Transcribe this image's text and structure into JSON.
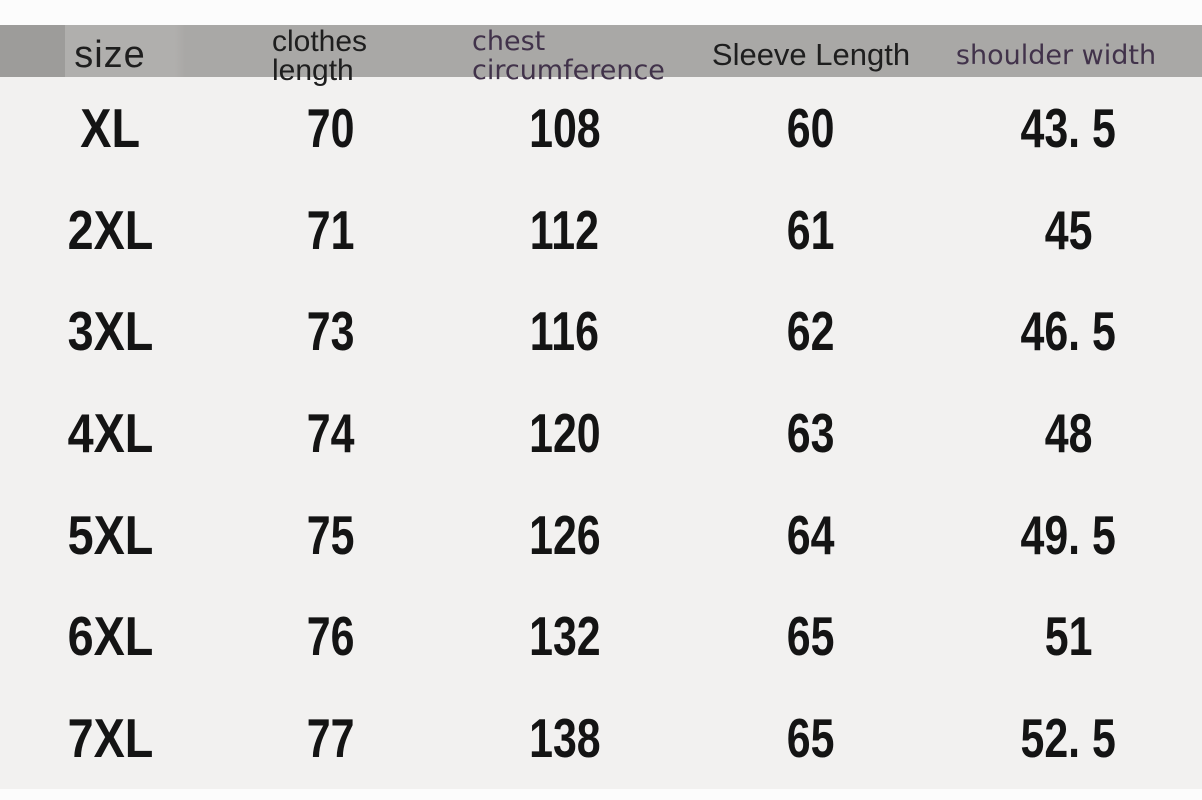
{
  "colors": {
    "header_band": "#a9a8a6",
    "body_bg": "#f2f1f0",
    "page_bg": "#fcfcfc",
    "header_text": "#1e1e1e",
    "accent_header_text": "#41324a",
    "value_text": "#141414"
  },
  "table": {
    "headers": {
      "size": "size",
      "clothes_length_line1": "clothes",
      "clothes_length_line2": "length",
      "chest_line1": "chest",
      "chest_line2": "circumference",
      "sleeve": "Sleeve Length",
      "shoulder": "shoulder width"
    },
    "rows": [
      {
        "size": "XL",
        "clothes_length": "70",
        "chest": "108",
        "sleeve": "60",
        "shoulder": "43. 5"
      },
      {
        "size": "2XL",
        "clothes_length": "71",
        "chest": "112",
        "sleeve": "61",
        "shoulder": "45"
      },
      {
        "size": "3XL",
        "clothes_length": "73",
        "chest": "116",
        "sleeve": "62",
        "shoulder": "46. 5"
      },
      {
        "size": "4XL",
        "clothes_length": "74",
        "chest": "120",
        "sleeve": "63",
        "shoulder": "48"
      },
      {
        "size": "5XL",
        "clothes_length": "75",
        "chest": "126",
        "sleeve": "64",
        "shoulder": "49. 5"
      },
      {
        "size": "6XL",
        "clothes_length": "76",
        "chest": "132",
        "sleeve": "65",
        "shoulder": "51"
      },
      {
        "size": "7XL",
        "clothes_length": "77",
        "chest": "138",
        "sleeve": "65",
        "shoulder": "52. 5"
      }
    ]
  },
  "chart_data": {
    "type": "table",
    "columns": [
      "size",
      "clothes length",
      "chest circumference",
      "Sleeve Length",
      "shoulder width"
    ],
    "rows": [
      [
        "XL",
        70,
        108,
        60,
        43.5
      ],
      [
        "2XL",
        71,
        112,
        61,
        45
      ],
      [
        "3XL",
        73,
        116,
        62,
        46.5
      ],
      [
        "4XL",
        74,
        120,
        63,
        48
      ],
      [
        "5XL",
        75,
        126,
        64,
        49.5
      ],
      [
        "6XL",
        76,
        132,
        65,
        51
      ],
      [
        "7XL",
        77,
        138,
        65,
        52.5
      ]
    ]
  }
}
